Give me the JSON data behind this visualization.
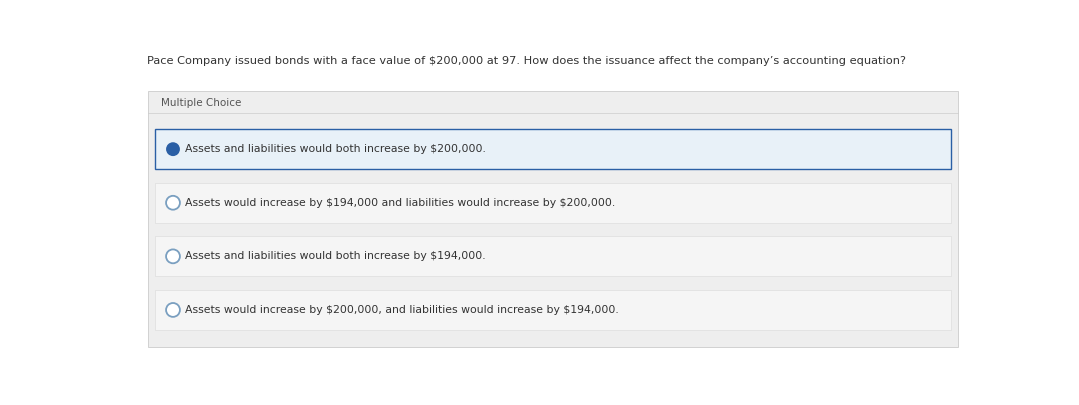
{
  "question": "Pace Company issued bonds with a face value of $200,000 at 97. How does the issuance affect the company’s accounting equation?",
  "section_label": "Multiple Choice",
  "choices": [
    "Assets and liabilities would both increase by $200,000.",
    "Assets would increase by $194,000 and liabilities would increase by $200,000.",
    "Assets and liabilities would both increase by $194,000.",
    "Assets would increase by $200,000, and liabilities would increase by $194,000."
  ],
  "selected_index": 0,
  "page_bg": "#ffffff",
  "section_bg": "#eeeeee",
  "selected_bg": "#e8f1f8",
  "selected_border": "#2a5fa5",
  "unselected_bg": "#f5f5f5",
  "unselected_border": "#dddddd",
  "circle_fill_selected": "#2a5fa5",
  "circle_stroke_unselected": "#7a9fc0",
  "text_color": "#333333",
  "label_color": "#555555",
  "question_fontsize": 8.2,
  "label_fontsize": 7.5,
  "choice_fontsize": 7.8
}
